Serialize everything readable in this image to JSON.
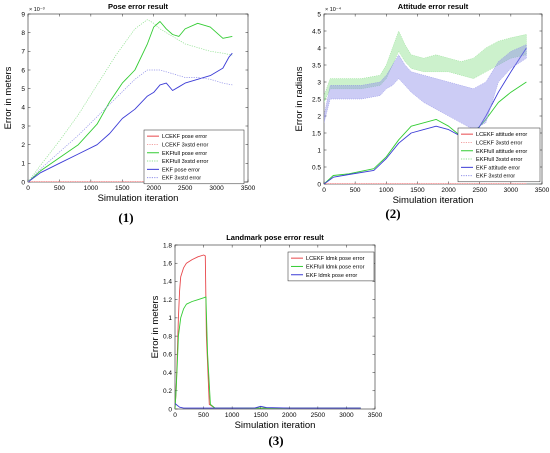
{
  "colors": {
    "lcekf_error": "#e8474b",
    "lcekf_std": "#f2a3a3",
    "ekffull_error": "#33cc33",
    "ekffull_std": "#8ee08e",
    "ekf_error": "#3b3bd6",
    "ekf_std": "#8f8fe8"
  },
  "captions": [
    "(1)",
    "(2)",
    "(3)"
  ],
  "chart_data": [
    {
      "type": "line",
      "title": "Pose error result",
      "xlabel": "Simulation iteration",
      "ylabel": "Error in meters",
      "exponent_label": "× 10⁻³",
      "xlim": [
        0,
        3500
      ],
      "ylim": [
        0,
        0.009
      ],
      "xticks": [
        0,
        500,
        1000,
        1500,
        2000,
        2500,
        3000,
        3500
      ],
      "yticks": [
        0,
        0.001,
        0.002,
        0.003,
        0.004,
        0.005,
        0.006,
        0.007,
        0.008,
        0.009
      ],
      "ytick_labels": [
        "0",
        "1",
        "2",
        "3",
        "4",
        "5",
        "6",
        "7",
        "8",
        "9"
      ],
      "legend_position": "bottom-right",
      "series": [
        {
          "name": "LCEKF pose error",
          "style": "line",
          "color_key": "lcekf_error",
          "x": [
            0,
            3250
          ],
          "y": [
            0,
            0
          ]
        },
        {
          "name": "LCEKF 3xstd error",
          "style": "dotted",
          "color_key": "lcekf_std",
          "x": [
            0,
            3250
          ],
          "y": [
            0,
            0
          ]
        },
        {
          "name": "EKFfull pose error",
          "style": "line",
          "color_key": "ekffull_error",
          "x": [
            0,
            200,
            500,
            800,
            1100,
            1300,
            1500,
            1700,
            1900,
            2000,
            2100,
            2200,
            2300,
            2400,
            2500,
            2700,
            2900,
            3100,
            3250
          ],
          "y": [
            0,
            0.0006,
            0.0013,
            0.002,
            0.0031,
            0.0043,
            0.0053,
            0.006,
            0.0074,
            0.0083,
            0.0086,
            0.0082,
            0.0079,
            0.0078,
            0.0082,
            0.0085,
            0.0083,
            0.0077,
            0.0078
          ]
        },
        {
          "name": "EKFfull 3xstd error",
          "style": "dotted",
          "color_key": "ekffull_std",
          "x": [
            0,
            200,
            500,
            800,
            1100,
            1400,
            1700,
            1900,
            2000,
            2100,
            2300,
            2500,
            2700,
            2900,
            3100,
            3250
          ],
          "y": [
            0,
            0.0009,
            0.0022,
            0.0036,
            0.0052,
            0.0068,
            0.0082,
            0.0087,
            0.0085,
            0.0082,
            0.0078,
            0.0074,
            0.0072,
            0.007,
            0.0069,
            0.0068
          ]
        },
        {
          "name": "EKF pose error",
          "style": "line",
          "color_key": "ekf_error",
          "x": [
            0,
            200,
            500,
            800,
            1100,
            1300,
            1500,
            1700,
            1900,
            2000,
            2100,
            2200,
            2300,
            2400,
            2500,
            2700,
            2900,
            3100,
            3200,
            3250
          ],
          "y": [
            0,
            0.0005,
            0.001,
            0.0015,
            0.002,
            0.0026,
            0.0034,
            0.0039,
            0.0046,
            0.0048,
            0.0052,
            0.0053,
            0.0049,
            0.0051,
            0.0053,
            0.0055,
            0.0057,
            0.0061,
            0.0067,
            0.0069
          ]
        },
        {
          "name": "EKF 3xstd error",
          "style": "dotted",
          "color_key": "ekf_std",
          "x": [
            0,
            200,
            500,
            800,
            1100,
            1400,
            1700,
            1900,
            2100,
            2300,
            2500,
            2700,
            2900,
            3100,
            3250
          ],
          "y": [
            0,
            0.0007,
            0.0016,
            0.0025,
            0.0035,
            0.0045,
            0.0055,
            0.006,
            0.006,
            0.0058,
            0.0056,
            0.0056,
            0.0055,
            0.0053,
            0.0052
          ]
        }
      ]
    },
    {
      "type": "line",
      "title": "Attitude error result",
      "xlabel": "Simulation iteration",
      "ylabel": "Error in radians",
      "exponent_label": "× 10⁻⁴",
      "xlim": [
        0,
        3500
      ],
      "ylim": [
        0,
        0.0005
      ],
      "xticks": [
        0,
        500,
        1000,
        1500,
        2000,
        2500,
        3000,
        3500
      ],
      "yticks": [
        0,
        5e-05,
        0.0001,
        0.00015,
        0.0002,
        0.00025,
        0.0003,
        0.00035,
        0.0004,
        0.00045,
        0.0005
      ],
      "ytick_labels": [
        "0",
        "0.5",
        "1",
        "1.5",
        "2",
        "2.5",
        "3",
        "3.5",
        "4",
        "4.5",
        "5"
      ],
      "legend_position": "bottom-right",
      "series": [
        {
          "name": "LCEKF attitude error",
          "style": "line",
          "color_key": "lcekf_error",
          "x": [
            0,
            3250
          ],
          "y": [
            0,
            0
          ]
        },
        {
          "name": "LCEKF 3xstd error",
          "style": "dotted",
          "color_key": "lcekf_std",
          "x": [
            0,
            3250
          ],
          "y": [
            0,
            0
          ]
        },
        {
          "name": "EKFfull attitude error",
          "style": "line",
          "color_key": "ekffull_error",
          "x": [
            0,
            150,
            400,
            800,
            1000,
            1200,
            1400,
            1600,
            1800,
            2000,
            2200,
            2400,
            2600,
            2800,
            3000,
            3250
          ],
          "y": [
            0,
            2.5e-05,
            3e-05,
            4.5e-05,
            8e-05,
            0.00013,
            0.00017,
            0.00018,
            0.00019,
            0.00017,
            0.00014,
            0.00015,
            0.00019,
            0.00024,
            0.00027,
            0.0003
          ]
        },
        {
          "name": "EKFfull 3xstd error",
          "style": "band",
          "color_key": "ekffull_std",
          "x": [
            0,
            100,
            200,
            600,
            900,
            1000,
            1100,
            1200,
            1300,
            1400,
            1600,
            1800,
            2000,
            2200,
            2400,
            2600,
            2800,
            3000,
            3250
          ],
          "y_low": [
            0.00024,
            0.00028,
            0.00028,
            0.00028,
            0.00029,
            0.00031,
            0.00035,
            0.00039,
            0.00036,
            0.00034,
            0.00033,
            0.00033,
            0.00033,
            0.00032,
            0.00031,
            0.00033,
            0.00035,
            0.00037,
            0.00038
          ],
          "y_high": [
            0.00026,
            0.00031,
            0.00031,
            0.00031,
            0.00032,
            0.00035,
            0.0004,
            0.00045,
            0.00041,
            0.00038,
            0.00037,
            0.00038,
            0.00037,
            0.00036,
            0.00037,
            0.0004,
            0.00042,
            0.00043,
            0.00044
          ]
        },
        {
          "name": "EKF attitude error",
          "style": "line",
          "color_key": "ekf_error",
          "x": [
            0,
            150,
            400,
            800,
            1000,
            1200,
            1400,
            1600,
            1800,
            2000,
            2200,
            2400,
            2600,
            2800,
            3000,
            3250
          ],
          "y": [
            0,
            2e-05,
            2.8e-05,
            4e-05,
            7.5e-05,
            0.00012,
            0.00015,
            0.00016,
            0.00017,
            0.00016,
            0.00014,
            0.00014,
            0.0002,
            0.00027,
            0.00033,
            0.0004
          ]
        },
        {
          "name": "EKF 3xstd error",
          "style": "band",
          "color_key": "ekf_std",
          "x": [
            0,
            100,
            200,
            600,
            900,
            1000,
            1100,
            1200,
            1300,
            1400,
            1600,
            1800,
            2000,
            2200,
            2400,
            2600,
            2800,
            3000,
            3250
          ],
          "y_low": [
            0.00018,
            0.00025,
            0.00025,
            0.00025,
            0.00026,
            0.00028,
            0.00029,
            0.00031,
            0.00029,
            0.00027,
            0.00024,
            0.00022,
            0.0002,
            0.00018,
            0.00016,
            0.00018,
            0.0003,
            0.00034,
            0.00037
          ],
          "y_high": [
            0.0002,
            0.00029,
            0.00029,
            0.00029,
            0.0003,
            0.00032,
            0.00035,
            0.00038,
            0.00035,
            0.00033,
            0.00032,
            0.00031,
            0.0003,
            0.00029,
            0.00028,
            0.0003,
            0.00036,
            0.00039,
            0.00041
          ]
        }
      ]
    },
    {
      "type": "line",
      "title": "Landmark pose error result",
      "xlabel": "Simulation iteration",
      "ylabel": "Error in meters",
      "xlim": [
        0,
        3500
      ],
      "ylim": [
        0,
        1.8
      ],
      "xticks": [
        0,
        500,
        1000,
        1500,
        2000,
        2500,
        3000,
        3500
      ],
      "yticks": [
        0,
        0.2,
        0.4,
        0.6,
        0.8,
        1,
        1.2,
        1.4,
        1.6,
        1.8
      ],
      "ytick_labels": [
        "0",
        "0.2",
        "0.4",
        "0.6",
        "0.8",
        "1",
        "1.2",
        "1.4",
        "1.6",
        "1.8"
      ],
      "legend_position": "top-right",
      "series": [
        {
          "name": "LCEKF ldmk pose error",
          "style": "line",
          "color_key": "lcekf_error",
          "x": [
            0,
            20,
            40,
            60,
            80,
            100,
            150,
            200,
            300,
            400,
            500,
            530,
            550,
            600,
            700,
            3250
          ],
          "y": [
            0,
            0.2,
            0.6,
            1.0,
            1.3,
            1.45,
            1.55,
            1.6,
            1.64,
            1.67,
            1.69,
            1.68,
            0.8,
            0.05,
            0.01,
            0.01
          ]
        },
        {
          "name": "EKFfull ldmk pose error",
          "style": "line",
          "color_key": "ekffull_error",
          "x": [
            0,
            20,
            40,
            60,
            100,
            150,
            200,
            300,
            400,
            500,
            540,
            570,
            620,
            700,
            3250
          ],
          "y": [
            0,
            0.2,
            0.5,
            0.8,
            1.0,
            1.1,
            1.15,
            1.18,
            1.2,
            1.22,
            1.23,
            0.6,
            0.05,
            0.01,
            0.01
          ]
        },
        {
          "name": "EKF ldmk pose error",
          "style": "line",
          "color_key": "ekf_error",
          "x": [
            0,
            40,
            80,
            150,
            300,
            500,
            700,
            1000,
            1400,
            1500,
            1600,
            2000,
            2500,
            3000,
            3250
          ],
          "y": [
            0.06,
            0.04,
            0.02,
            0.01,
            0.01,
            0.01,
            0.01,
            0.01,
            0.012,
            0.03,
            0.015,
            0.01,
            0.01,
            0.01,
            0.01
          ]
        }
      ]
    }
  ]
}
